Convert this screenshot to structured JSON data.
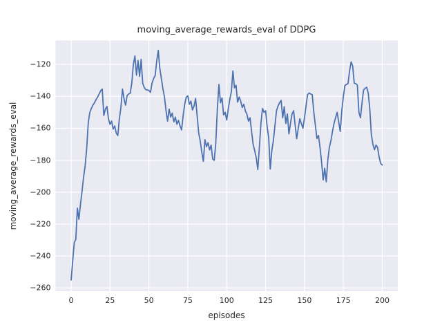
{
  "chart_data": {
    "type": "line",
    "title": "moving_average_rewards_eval of DDPG",
    "xlabel": "episodes",
    "ylabel": "moving_average_rewards_eval",
    "x_ticks": [
      0,
      25,
      50,
      75,
      100,
      125,
      150,
      175,
      200
    ],
    "y_ticks": [
      -120,
      -140,
      -160,
      -180,
      -200,
      -220,
      -240,
      -260
    ],
    "xlim": [
      -10,
      210
    ],
    "ylim": [
      -262,
      -105
    ],
    "grid": true,
    "legend": "none",
    "line_color": "#4c72b0",
    "plot_bg": "#eaeaf2",
    "grid_color": "#ffffff",
    "series": [
      {
        "name": "moving_average_rewards_eval",
        "x_start": 0,
        "x_step": 1,
        "values": [
          -255.0,
          -243.0,
          -231.5,
          -229.5,
          -210.0,
          -217.0,
          -207.5,
          -199.5,
          -190.5,
          -183.5,
          -172.5,
          -156.5,
          -150.0,
          -147.5,
          -145.5,
          -144.0,
          -142.0,
          -140.5,
          -138.5,
          -136.5,
          -135.4,
          -152.0,
          -148.0,
          -146.3,
          -154.0,
          -157.5,
          -155.5,
          -160.5,
          -158.5,
          -163.0,
          -164.5,
          -154.0,
          -147.0,
          -135.4,
          -141.5,
          -145.5,
          -139.5,
          -138.5,
          -138.0,
          -131.5,
          -120.0,
          -114.7,
          -126.7,
          -117.5,
          -127.5,
          -116.8,
          -131.8,
          -134.5,
          -135.8,
          -136.0,
          -136.3,
          -137.5,
          -131.8,
          -128.9,
          -127.0,
          -118.0,
          -111.2,
          -122.5,
          -128.8,
          -135.3,
          -140.4,
          -149.0,
          -155.5,
          -148.0,
          -153.0,
          -150.5,
          -156.0,
          -153.0,
          -157.5,
          -155.0,
          -158.5,
          -161.0,
          -152.0,
          -145.0,
          -140.5,
          -139.7,
          -145.0,
          -143.0,
          -148.5,
          -146.0,
          -141.3,
          -152.0,
          -163.0,
          -168.0,
          -175.0,
          -180.7,
          -167.1,
          -171.5,
          -169.0,
          -173.5,
          -170.5,
          -179.3,
          -180.0,
          -169.0,
          -147.6,
          -132.5,
          -144.0,
          -141.0,
          -151.6,
          -150.0,
          -154.8,
          -148.0,
          -142.0,
          -137.0,
          -124.0,
          -134.7,
          -133.0,
          -143.6,
          -140.4,
          -143.0,
          -147.0,
          -145.0,
          -149.1,
          -151.2,
          -155.5,
          -153.4,
          -162.0,
          -170.0,
          -174.0,
          -178.5,
          -185.8,
          -172.0,
          -157.0,
          -147.6,
          -150.0,
          -149.0,
          -159.0,
          -166.0,
          -185.5,
          -174.0,
          -167.8,
          -158.5,
          -149.1,
          -146.0,
          -144.0,
          -142.5,
          -153.4,
          -146.5,
          -157.0,
          -151.0,
          -163.5,
          -157.0,
          -151.0,
          -149.0,
          -158.0,
          -166.5,
          -160.0,
          -154.0,
          -157.0,
          -160.0,
          -153.5,
          -146.0,
          -139.0,
          -137.9,
          -138.5,
          -139.0,
          -150.0,
          -158.0,
          -166.4,
          -164.5,
          -172.0,
          -181.0,
          -192.3,
          -185.0,
          -193.5,
          -180.0,
          -172.0,
          -167.8,
          -162.0,
          -157.0,
          -153.4,
          -150.0,
          -156.0,
          -162.0,
          -149.0,
          -140.0,
          -133.2,
          -132.5,
          -132.0,
          -124.0,
          -118.4,
          -121.0,
          -131.8,
          -132.0,
          -133.0,
          -150.0,
          -153.4,
          -144.0,
          -136.0,
          -135.0,
          -134.3,
          -138.0,
          -148.0,
          -164.0,
          -170.0,
          -173.4,
          -170.5,
          -172.0,
          -178.0,
          -182.0,
          -183.0
        ]
      }
    ]
  }
}
